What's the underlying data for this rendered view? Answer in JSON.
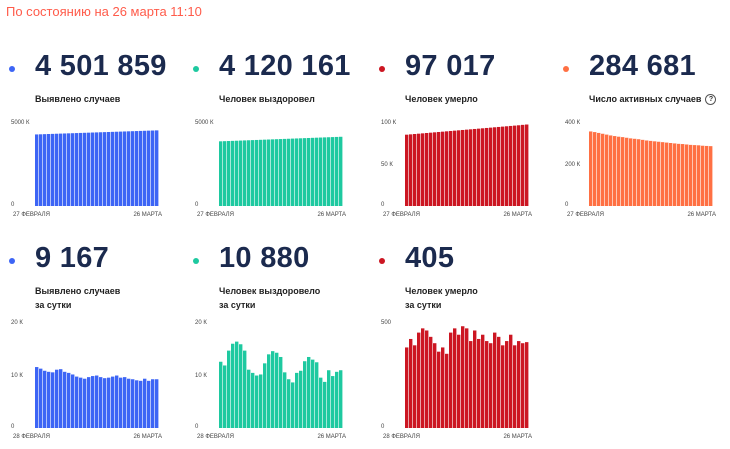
{
  "header": "По состоянию на 26 марта 11:10",
  "panels": [
    {
      "value": "4 501 859",
      "label": [
        "Выявлено случаев"
      ],
      "color": "#3d65f5",
      "chart_data": {
        "type": "bar",
        "ylim": [
          0,
          5000
        ],
        "yticks": [
          {
            "value": 5000,
            "label": "5000 К"
          },
          {
            "value": 0,
            "label": "0"
          }
        ],
        "xlabels": [
          "27 ФЕВРАЛЯ",
          "26 МАРТА"
        ],
        "values": [
          4260,
          4268,
          4277,
          4285,
          4293,
          4301,
          4309,
          4317,
          4325,
          4333,
          4341,
          4349,
          4357,
          4365,
          4373,
          4381,
          4389,
          4397,
          4405,
          4413,
          4421,
          4429,
          4437,
          4445,
          4453,
          4461,
          4469,
          4477,
          4485,
          4493,
          4502
        ]
      }
    },
    {
      "value": "4 120 161",
      "label": [
        "Человек выздоровел"
      ],
      "color": "#1ec9a0",
      "chart_data": {
        "type": "bar",
        "ylim": [
          0,
          5000
        ],
        "yticks": [
          {
            "value": 5000,
            "label": "5000 К"
          },
          {
            "value": 0,
            "label": "0"
          }
        ],
        "xlabels": [
          "27 ФЕВРАЛЯ",
          "26 МАРТА"
        ],
        "values": [
          3850,
          3859,
          3868,
          3877,
          3886,
          3895,
          3904,
          3913,
          3922,
          3931,
          3940,
          3949,
          3958,
          3967,
          3976,
          3985,
          3994,
          4003,
          4012,
          4021,
          4030,
          4039,
          4048,
          4057,
          4066,
          4075,
          4084,
          4093,
          4102,
          4111,
          4120
        ]
      }
    },
    {
      "value": "97 017",
      "label": [
        "Человек умерло"
      ],
      "color": "#cc1622",
      "chart_data": {
        "type": "bar",
        "ylim": [
          0,
          100
        ],
        "yticks": [
          {
            "value": 100,
            "label": "100 К"
          },
          {
            "value": 50,
            "label": "50 К"
          },
          {
            "value": 0,
            "label": "0"
          }
        ],
        "xlabels": [
          "27 ФЕВРАЛЯ",
          "26 МАРТА"
        ],
        "values": [
          84.9,
          85.3,
          85.7,
          86.1,
          86.5,
          86.9,
          87.3,
          87.7,
          88.1,
          88.5,
          88.9,
          89.3,
          89.7,
          90.1,
          90.5,
          90.9,
          91.3,
          91.7,
          92.1,
          92.5,
          92.9,
          93.3,
          93.7,
          94.1,
          94.5,
          94.9,
          95.3,
          95.7,
          96.1,
          96.6,
          97.0
        ]
      }
    },
    {
      "value": "284 681",
      "label": [
        "Число активных случаев"
      ],
      "help": "?",
      "color": "#ff7043",
      "chart_data": {
        "type": "bar",
        "ylim": [
          0,
          400
        ],
        "yticks": [
          {
            "value": 400,
            "label": "400 К"
          },
          {
            "value": 200,
            "label": "200 К"
          },
          {
            "value": 0,
            "label": "0"
          }
        ],
        "xlabels": [
          "27 ФЕВРАЛЯ",
          "26 МАРТА"
        ],
        "values": [
          355,
          352,
          348,
          344,
          340,
          336,
          333,
          330,
          328,
          325,
          322,
          320,
          318,
          315,
          312,
          310,
          308,
          306,
          304,
          302,
          300,
          298,
          296,
          295,
          293,
          291,
          290,
          289,
          287,
          286,
          285
        ]
      }
    },
    {
      "value": "9 167",
      "label": [
        "Выявлено случаев",
        "за сутки"
      ],
      "color": "#3d65f5",
      "chart_data": {
        "type": "bar",
        "ylim": [
          0,
          20
        ],
        "yticks": [
          {
            "value": 20,
            "label": "20 К"
          },
          {
            "value": 10,
            "label": "10 К"
          },
          {
            "value": 0,
            "label": "0"
          }
        ],
        "xlabels": [
          "28 ФЕВРАЛЯ",
          "26 МАРТА"
        ],
        "values": [
          11.5,
          11.2,
          10.8,
          10.6,
          10.5,
          11.0,
          11.1,
          10.6,
          10.4,
          10.1,
          9.7,
          9.5,
          9.3,
          9.6,
          9.8,
          9.9,
          9.6,
          9.4,
          9.5,
          9.7,
          9.9,
          9.5,
          9.6,
          9.3,
          9.2,
          9.0,
          8.9,
          9.3,
          8.9,
          9.2,
          9.2
        ]
      }
    },
    {
      "value": "10 880",
      "label": [
        "Человек выздоровело",
        "за сутки"
      ],
      "color": "#1ec9a0",
      "chart_data": {
        "type": "bar",
        "ylim": [
          0,
          20
        ],
        "yticks": [
          {
            "value": 20,
            "label": "20 К"
          },
          {
            "value": 10,
            "label": "10 К"
          },
          {
            "value": 0,
            "label": "0"
          }
        ],
        "xlabels": [
          "28 ФЕВРАЛЯ",
          "26 МАРТА"
        ],
        "values": [
          12.5,
          11.8,
          14.6,
          15.9,
          16.3,
          15.8,
          14.6,
          11.0,
          10.4,
          9.9,
          10.1,
          12.2,
          13.9,
          14.5,
          14.2,
          13.4,
          10.5,
          9.2,
          8.6,
          10.4,
          10.8,
          12.6,
          13.4,
          12.9,
          12.4,
          9.5,
          8.7,
          10.9,
          9.8,
          10.6,
          10.9
        ]
      }
    },
    {
      "value": "405",
      "label": [
        "Человек умерло",
        "за сутки"
      ],
      "color": "#cc1622",
      "chart_data": {
        "type": "bar",
        "ylim": [
          0,
          500
        ],
        "yticks": [
          {
            "value": 500,
            "label": "500"
          },
          {
            "value": 0,
            "label": "0"
          }
        ],
        "xlabels": [
          "28 ФЕВРАЛЯ",
          "26 МАРТА"
        ],
        "values": [
          380,
          420,
          390,
          450,
          470,
          460,
          430,
          400,
          360,
          380,
          350,
          450,
          470,
          440,
          480,
          470,
          410,
          460,
          420,
          440,
          410,
          400,
          450,
          430,
          390,
          410,
          440,
          390,
          410,
          400,
          405
        ]
      }
    }
  ]
}
